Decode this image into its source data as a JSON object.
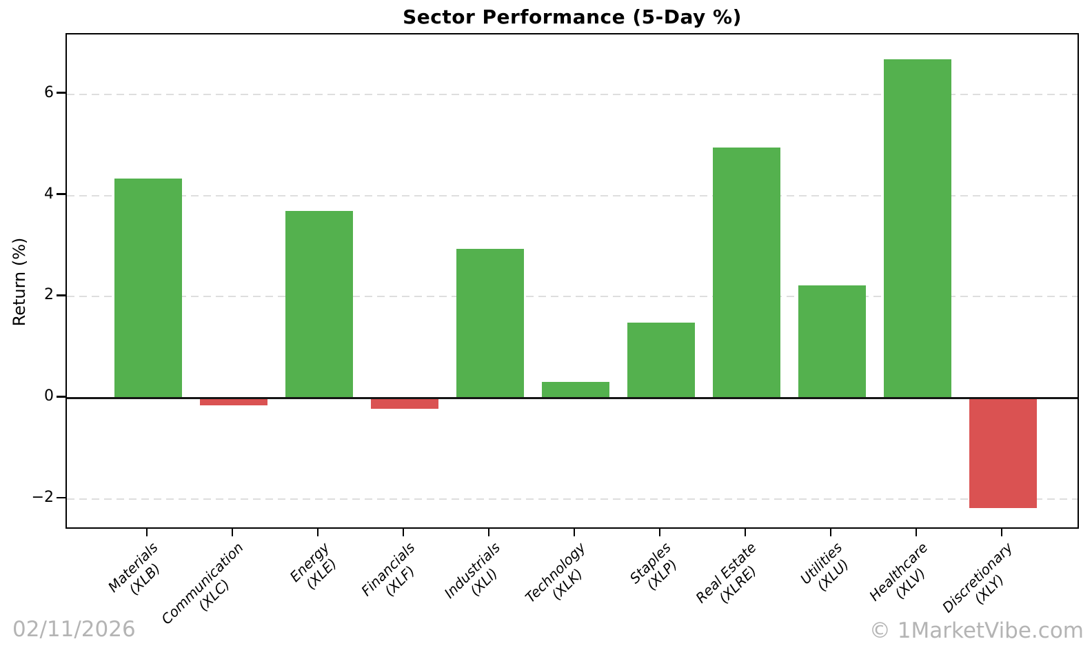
{
  "chart_data": {
    "type": "bar",
    "title": "Sector Performance (5-Day %)",
    "xlabel": "",
    "ylabel": "Return (%)",
    "categories": [
      {
        "sector": "Materials",
        "ticker": "(XLB)"
      },
      {
        "sector": "Communication",
        "ticker": "(XLC)"
      },
      {
        "sector": "Energy",
        "ticker": "(XLE)"
      },
      {
        "sector": "Financials",
        "ticker": "(XLF)"
      },
      {
        "sector": "Industrials",
        "ticker": "(XLI)"
      },
      {
        "sector": "Technology",
        "ticker": "(XLK)"
      },
      {
        "sector": "Staples",
        "ticker": "(XLP)"
      },
      {
        "sector": "Real Estate",
        "ticker": "(XLRE)"
      },
      {
        "sector": "Utilities",
        "ticker": "(XLU)"
      },
      {
        "sector": "Healthcare",
        "ticker": "(XLV)"
      },
      {
        "sector": "Discretionary",
        "ticker": "(XLY)"
      }
    ],
    "values": [
      4.33,
      -0.15,
      3.7,
      -0.22,
      2.94,
      0.32,
      1.49,
      4.95,
      2.23,
      6.69,
      -2.18
    ],
    "ylim": [
      -2.61,
      7.18
    ],
    "y_ticks": [
      {
        "value": -2,
        "label": "−2"
      },
      {
        "value": 0,
        "label": "0"
      },
      {
        "value": 2,
        "label": "2"
      },
      {
        "value": 4,
        "label": "4"
      },
      {
        "value": 6,
        "label": "6"
      }
    ],
    "grid": "horizontal-dashed",
    "zero_line": true,
    "legend": "none",
    "bar_width_fraction": 0.79
  },
  "colors": {
    "positive_bar": "#54b14e",
    "negative_bar": "#da5252",
    "gridline": "#dedede",
    "axis": "#000000",
    "watermark": "#b4b4b4"
  },
  "watermarks": {
    "date": "02/11/2026",
    "brand": "© 1MarketVibe.com"
  }
}
